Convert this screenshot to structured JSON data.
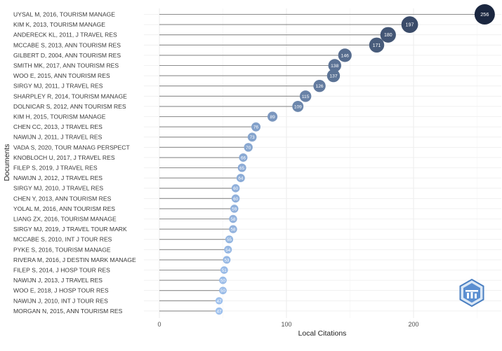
{
  "chart_data": {
    "type": "scatter",
    "style": "lollipop",
    "xlabel": "Local Citations",
    "ylabel": "Documents",
    "xlim": [
      0,
      265
    ],
    "xticks": [
      0,
      100,
      200
    ],
    "grid": true,
    "legend": "none",
    "color_scale": [
      "#9ec1ee",
      "#1b2740"
    ],
    "categories": [
      "UYSAL M, 2016, TOURISM MANAGE",
      "KIM K, 2013, TOURISM MANAGE",
      "ANDERECK KL, 2011, J TRAVEL RES",
      "MCCABE S, 2013, ANN TOURISM RES",
      "GILBERT D, 2004, ANN TOURISM RES",
      "SMITH MK, 2017, ANN TOURISM RES",
      "WOO E, 2015, ANN TOURISM RES",
      "SIRGY MJ, 2011, J TRAVEL RES",
      "SHARPLEY R, 2014, TOURISM MANAGE",
      "DOLNICAR S, 2012, ANN TOURISM RES",
      "KIM H, 2015, TOURISM MANAGE",
      "CHEN CC, 2013, J TRAVEL RES",
      "NAWIJN J, 2011, J TRAVEL RES",
      "VADA S, 2020, TOUR MANAG PERSPECT",
      "KNOBLOCH U, 2017, J TRAVEL RES",
      "FILEP S, 2019, J TRAVEL RES",
      "NAWIJN J, 2012, J TRAVEL RES",
      "SIRGY MJ, 2010, J TRAVEL RES",
      "CHEN Y, 2013, ANN TOURISM RES",
      "YOLAL M, 2016, ANN TOURISM RES",
      "LIANG ZX, 2016, TOURISM MANAGE",
      "SIRGY MJ, 2019, J TRAVEL TOUR MARK",
      "MCCABE S, 2010, INT J TOUR RES",
      "PYKE S, 2016, TOURISM MANAGE",
      "RIVERA M, 2016, J DESTIN MARK MANAGE",
      "FILEP S, 2014, J HOSP TOUR RES",
      "NAWIJN J, 2013, J TRAVEL RES",
      "WOO E, 2018, J HOSP TOUR RES",
      "NAWIJN J, 2010, INT J TOUR RES",
      "MORGAN N, 2015, ANN TOURISM RES"
    ],
    "values": [
      256,
      197,
      180,
      171,
      146,
      138,
      137,
      126,
      115,
      109,
      89,
      76,
      73,
      70,
      66,
      65,
      64,
      60,
      60,
      59,
      58,
      58,
      55,
      54,
      53,
      51,
      50,
      50,
      47,
      47
    ]
  }
}
